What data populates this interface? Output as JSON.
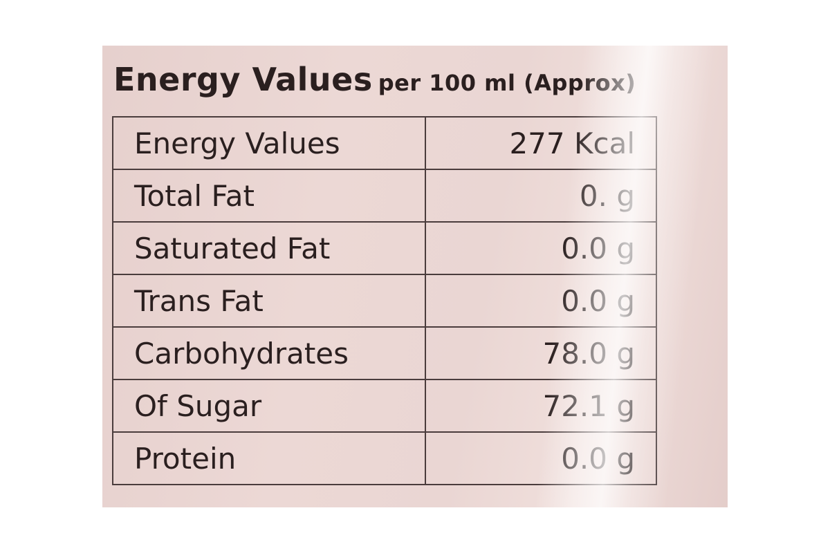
{
  "heading": {
    "main": "Energy Values",
    "sub": "per 100 ml (Approx)"
  },
  "rows": [
    {
      "nutrient": "Energy Values",
      "amount": "277 Kcal"
    },
    {
      "nutrient": "Total Fat",
      "amount": "0. g"
    },
    {
      "nutrient": "Saturated Fat",
      "amount": "0.0 g"
    },
    {
      "nutrient": "Trans Fat",
      "amount": "0.0 g"
    },
    {
      "nutrient": "Carbohydrates",
      "amount": "78.0 g"
    },
    {
      "nutrient": "Of Sugar",
      "amount": "72.1 g"
    },
    {
      "nutrient": "Protein",
      "amount": "0.0 g"
    }
  ],
  "colors": {
    "label_background": "#ead6d3",
    "text": "#2a1f1f",
    "border": "#4a3c3c"
  }
}
